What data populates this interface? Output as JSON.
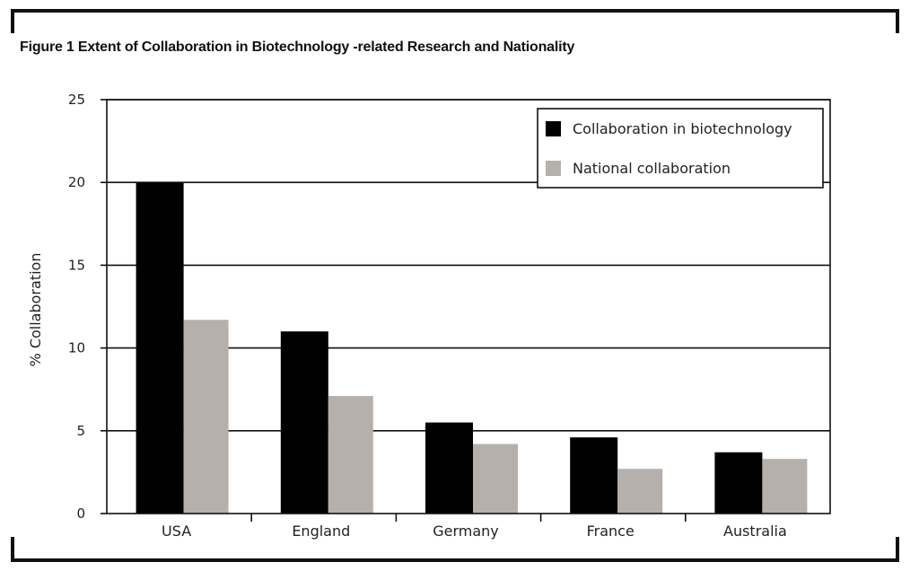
{
  "figure": {
    "title": "Figure 1 Extent of Collaboration in Biotechnology -related Research and Nationality"
  },
  "chart_data": {
    "type": "bar",
    "title": "Figure 1 Extent of Collaboration in Biotechnology -related Research and Nationality",
    "xlabel": "",
    "ylabel": "% Collaboration",
    "categories": [
      "USA",
      "England",
      "Germany",
      "France",
      "Australia"
    ],
    "series": [
      {
        "name": "Collaboration in biotechnology",
        "color": "#000000",
        "values": [
          20,
          11,
          5.5,
          4.6,
          3.7
        ]
      },
      {
        "name": "National collaboration",
        "color": "#b5b0ab",
        "values": [
          11.7,
          7.1,
          4.2,
          2.7,
          3.3
        ]
      }
    ],
    "ylim": [
      0,
      25
    ],
    "yticks": [
      "0",
      "5",
      "10",
      "15",
      "20",
      "25"
    ],
    "grid": true,
    "legend_position": "top-right"
  }
}
